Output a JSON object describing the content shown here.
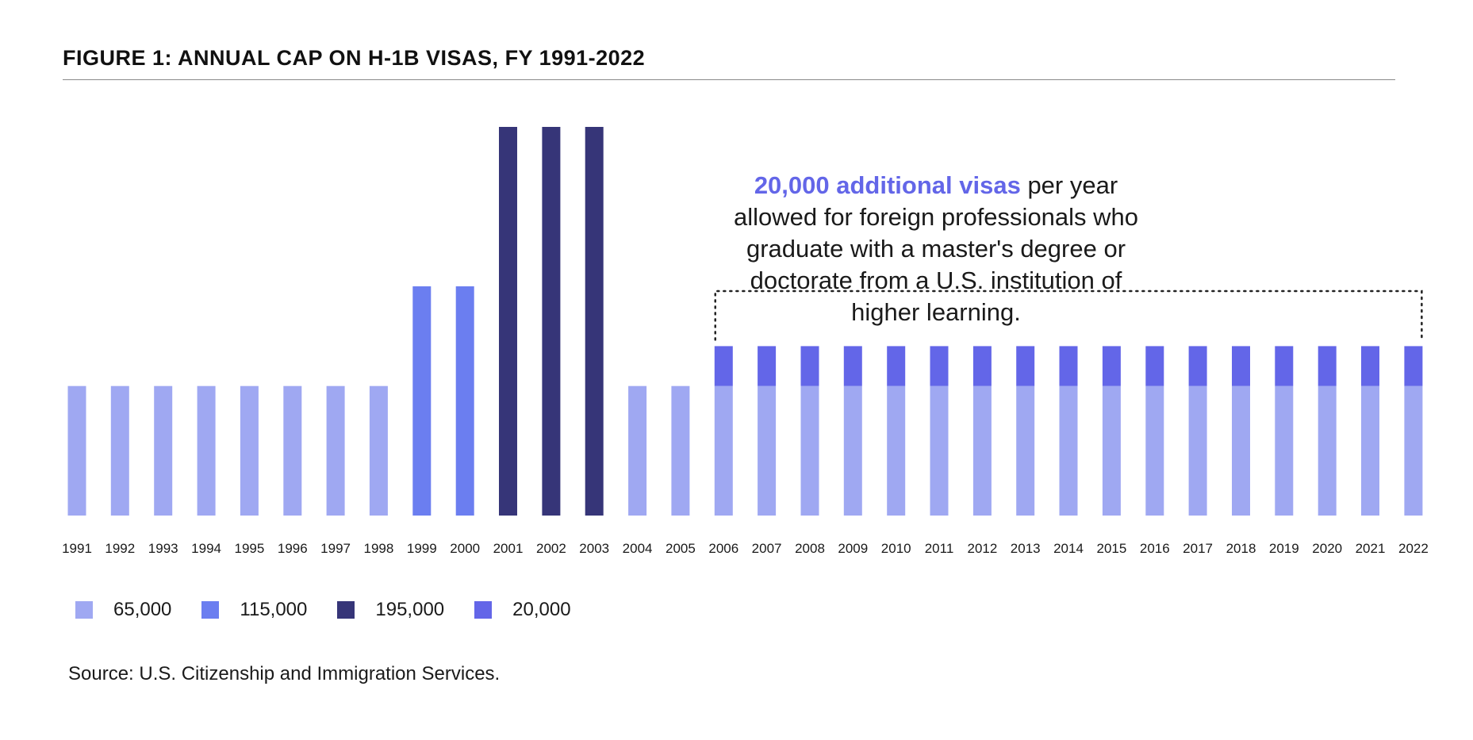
{
  "chart_data": {
    "type": "bar",
    "stacked": true,
    "title": "FIGURE 1: ANNUAL CAP ON H-1B VISAS, FY 1991-2022",
    "xlabel": "",
    "ylabel": "",
    "grid": false,
    "legend_position": "bottom-left",
    "ylim": [
      0,
      195000
    ],
    "categories": [
      "1991",
      "1992",
      "1993",
      "1994",
      "1995",
      "1996",
      "1997",
      "1998",
      "1999",
      "2000",
      "2001",
      "2002",
      "2003",
      "2004",
      "2005",
      "2006",
      "2007",
      "2008",
      "2009",
      "2010",
      "2011",
      "2012",
      "2013",
      "2014",
      "2015",
      "2016",
      "2017",
      "2018",
      "2019",
      "2020",
      "2021",
      "2022"
    ],
    "series": [
      {
        "name": "65,000",
        "color": "#9fa8f2",
        "values": [
          65000,
          65000,
          65000,
          65000,
          65000,
          65000,
          65000,
          65000,
          0,
          0,
          0,
          0,
          0,
          65000,
          65000,
          65000,
          65000,
          65000,
          65000,
          65000,
          65000,
          65000,
          65000,
          65000,
          65000,
          65000,
          65000,
          65000,
          65000,
          65000,
          65000,
          65000
        ]
      },
      {
        "name": "115,000",
        "color": "#6b7ef0",
        "values": [
          0,
          0,
          0,
          0,
          0,
          0,
          0,
          0,
          115000,
          115000,
          0,
          0,
          0,
          0,
          0,
          0,
          0,
          0,
          0,
          0,
          0,
          0,
          0,
          0,
          0,
          0,
          0,
          0,
          0,
          0,
          0,
          0
        ]
      },
      {
        "name": "195,000",
        "color": "#363578",
        "values": [
          0,
          0,
          0,
          0,
          0,
          0,
          0,
          0,
          0,
          0,
          195000,
          195000,
          195000,
          0,
          0,
          0,
          0,
          0,
          0,
          0,
          0,
          0,
          0,
          0,
          0,
          0,
          0,
          0,
          0,
          0,
          0,
          0
        ]
      },
      {
        "name": "20,000",
        "color": "#6366e8",
        "values": [
          0,
          0,
          0,
          0,
          0,
          0,
          0,
          0,
          0,
          0,
          0,
          0,
          0,
          0,
          0,
          20000,
          20000,
          20000,
          20000,
          20000,
          20000,
          20000,
          20000,
          20000,
          20000,
          20000,
          20000,
          20000,
          20000,
          20000,
          20000,
          20000
        ]
      }
    ],
    "annotation": {
      "highlight": "20,000 additional visas",
      "text": " per year allowed for foreign professionals who graduate with a master's degree or doctorate from a U.S. institution of higher learning.",
      "range": [
        "2006",
        "2022"
      ]
    }
  },
  "source": "Source: U.S. Citizenship and Immigration Services."
}
